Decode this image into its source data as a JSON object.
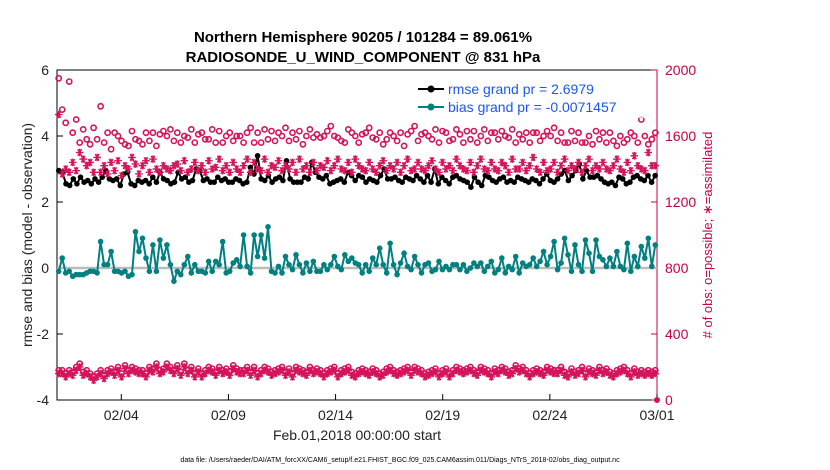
{
  "chart_data": {
    "type": "line",
    "title": {
      "line1": "Northern Hemisphere 90205 / 101284 = 89.061%",
      "line2": "RADIOSONDE_U_WIND_COMPONENT @ 831 hPa"
    },
    "xlabel": "Feb.01,2018 00:00:00 start",
    "ylabel_left": "rmse and bias (model - observation)",
    "ylabel_right": "# of obs: o=possible; ∗=assimilated",
    "xlim": [
      0,
      28
    ],
    "ylim_left": [
      -4,
      6
    ],
    "ylim_right": [
      0,
      2000
    ],
    "x_ticks": [
      {
        "value": 3,
        "label": "02/04"
      },
      {
        "value": 8,
        "label": "02/09"
      },
      {
        "value": 13,
        "label": "02/14"
      },
      {
        "value": 18,
        "label": "02/19"
      },
      {
        "value": 23,
        "label": "02/24"
      },
      {
        "value": 28,
        "label": "03/01"
      }
    ],
    "y_ticks_left": [
      "-4",
      "-2",
      "0",
      "2",
      "4",
      "6"
    ],
    "y_ticks_right": [
      "0",
      "400",
      "800",
      "1200",
      "1600",
      "2000"
    ],
    "legend": [
      {
        "label": "rmse grand pr = 2.6979",
        "color": "#000000"
      },
      {
        "label": "bias grand pr = -0.0071457",
        "color": "#008080"
      }
    ],
    "series": [
      {
        "name": "rmse",
        "color": "#000000",
        "marker": "filled-circle",
        "values": [
          2.95,
          2.9,
          2.55,
          2.5,
          2.7,
          2.55,
          2.75,
          2.6,
          2.65,
          2.55,
          2.7,
          2.6,
          2.75,
          2.95,
          2.7,
          2.65,
          2.7,
          2.5,
          2.85,
          2.9,
          2.55,
          2.5,
          2.65,
          2.6,
          2.65,
          2.55,
          2.75,
          2.6,
          2.9,
          2.7,
          2.65,
          2.55,
          2.6,
          2.9,
          2.7,
          2.75,
          2.6,
          2.65,
          3.0,
          2.95,
          2.65,
          2.7,
          2.6,
          2.6,
          2.75,
          2.65,
          2.7,
          2.6,
          2.6,
          2.7,
          2.65,
          2.55,
          2.6,
          3.05,
          2.85,
          3.4,
          2.7,
          2.65,
          2.8,
          2.6,
          2.7,
          2.75,
          2.65,
          3.25,
          2.7,
          2.6,
          2.6,
          2.6,
          2.75,
          2.7,
          3.2,
          2.9,
          2.75,
          2.7,
          2.8,
          2.55,
          2.6,
          2.65,
          2.7,
          2.6,
          2.9,
          2.8,
          2.65,
          2.8,
          2.75,
          2.6,
          2.7,
          2.65,
          2.6,
          2.8,
          3.0,
          2.7,
          2.7,
          2.75,
          2.65,
          2.6,
          2.75,
          2.7,
          2.65,
          2.8,
          2.7,
          2.6,
          2.8,
          2.6,
          3.0,
          2.55,
          2.75,
          2.65,
          2.55,
          2.75,
          2.8,
          2.7,
          2.65,
          2.6,
          2.45,
          2.75,
          2.6,
          2.5,
          2.8,
          2.75,
          2.65,
          2.6,
          2.7,
          2.75,
          2.6,
          2.65,
          2.6,
          2.75,
          2.7,
          2.65,
          2.6,
          2.7,
          2.65,
          2.55,
          2.7,
          2.85,
          2.65,
          2.6,
          2.7,
          2.85,
          2.95,
          2.65,
          2.8,
          2.95,
          3.15,
          2.7,
          2.95,
          2.75,
          2.75,
          2.8,
          2.7,
          2.6,
          2.55,
          2.6,
          2.5,
          2.75,
          2.7,
          2.55,
          2.6,
          2.75,
          2.8,
          2.7,
          2.65,
          2.8,
          2.6,
          2.8
        ]
      },
      {
        "name": "bias",
        "color": "#008080",
        "marker": "filled-circle",
        "values": [
          -0.1,
          0.3,
          -0.15,
          -0.1,
          -0.25,
          -0.2,
          -0.2,
          -0.2,
          -0.15,
          -0.1,
          -0.1,
          -0.15,
          0.8,
          0.1,
          0.1,
          0.5,
          -0.1,
          -0.1,
          -0.15,
          -0.1,
          -0.25,
          -0.2,
          1.1,
          0.5,
          0.9,
          0.3,
          -0.1,
          0.7,
          -0.1,
          0.85,
          0.3,
          0.7,
          0.1,
          -0.4,
          -0.1,
          -0.2,
          0.1,
          0.35,
          -0.15,
          0.1,
          -0.1,
          -0.1,
          -0.15,
          0.2,
          -0.1,
          0.2,
          0.1,
          0.8,
          -0.15,
          -0.1,
          0.15,
          0.25,
          0.05,
          1.0,
          0.05,
          -0.15,
          1.0,
          0.35,
          1.0,
          0.3,
          1.25,
          -0.1,
          -0.15,
          0.05,
          -0.15,
          0.35,
          0.1,
          -0.05,
          0.4,
          0.1,
          -0.15,
          0.15,
          -0.1,
          0.2,
          -0.1,
          -0.1,
          0.1,
          -0.05,
          0.1,
          0.35,
          0.05,
          -0.05,
          0.4,
          0.2,
          0.3,
          0.15,
          0.1,
          -0.15,
          0.1,
          -0.1,
          0.3,
          0.1,
          0.6,
          0.1,
          -0.15,
          0.75,
          0.1,
          -0.2,
          0.15,
          0.45,
          0.05,
          -0.05,
          0.35,
          0.1,
          -0.15,
          0.1,
          0.15,
          -0.1,
          -0.05,
          0.2,
          -0.05,
          0.05,
          -0.05,
          0.1,
          0.1,
          -0.05,
          0.1,
          -0.1,
          0.0,
          0.15,
          0.05,
          0.15,
          -0.1,
          0.05,
          0.2,
          -0.15,
          -0.05,
          0.3,
          -0.15,
          0.05,
          -0.05,
          0.35,
          -0.15,
          0.15,
          0.05,
          0.1,
          0.3,
          0.05,
          0.2,
          0.5,
          0.1,
          0.35,
          0.8,
          -0.05,
          0.15,
          0.9,
          0.4,
          -0.1,
          0.7,
          0.1,
          -0.1,
          0.85,
          0.45,
          -0.1,
          0.85,
          0.35,
          0.25,
          0.05,
          0.3,
          0.05,
          0.5,
          0.05,
          -0.05,
          0.75,
          -0.1,
          0.35,
          0.05,
          0.65,
          0.3,
          0.9,
          0.05,
          0.7
        ]
      },
      {
        "name": "possible",
        "color": "#d4145a",
        "marker": "open-circle",
        "axis": "right",
        "values": [
          1950,
          1760,
          1680,
          1930,
          1620,
          1700,
          1560,
          1640,
          1580,
          1550,
          1650,
          1580,
          1780,
          1560,
          1620,
          1520,
          1620,
          1600,
          1570,
          1550,
          1540,
          1630,
          1580,
          1570,
          1550,
          1620,
          1570,
          1620,
          1540,
          1610,
          1630,
          1600,
          1640,
          1570,
          1620,
          1560,
          1600,
          1590,
          1640,
          1560,
          1610,
          1620,
          1580,
          1580,
          1640,
          1560,
          1630,
          1560,
          1600,
          1620,
          1570,
          1600,
          1600,
          1560,
          1620,
          1650,
          1560,
          1620,
          1560,
          1640,
          1580,
          1630,
          1570,
          1620,
          1600,
          1650,
          1570,
          1620,
          1580,
          1630,
          1550,
          1600,
          1640,
          1590,
          1610,
          1590,
          1600,
          1630,
          1660,
          1600,
          1590,
          1570,
          1560,
          1640,
          1620,
          1600,
          1560,
          1610,
          1620,
          1650,
          1590,
          1580,
          1620,
          1550,
          1580,
          1620,
          1600,
          1570,
          1620,
          1540,
          1610,
          1630,
          1660,
          1570,
          1610,
          1620,
          1600,
          1580,
          1640,
          1560,
          1630,
          1620,
          1570,
          1580,
          1640,
          1610,
          1560,
          1630,
          1580,
          1630,
          1560,
          1600,
          1640,
          1570,
          1620,
          1620,
          1580,
          1630,
          1600,
          1590,
          1640,
          1560,
          1610,
          1580,
          1620,
          1560,
          1620,
          1620,
          1570,
          1600,
          1630,
          1600,
          1650,
          1570,
          1620,
          1560,
          1560,
          1630,
          1570,
          1620,
          1560,
          1560,
          1600,
          1550,
          1630,
          1580,
          1620,
          1560,
          1620,
          1570,
          1540,
          1600,
          1560,
          1580,
          1620,
          1600,
          1560,
          1700,
          1600,
          1550,
          1580,
          1620
        ]
      },
      {
        "name": "assimilated",
        "color": "#d4145a",
        "marker": "asterisk",
        "axis": "right",
        "values": [
          1730,
          1370,
          1400,
          1380,
          1440,
          1390,
          1500,
          1460,
          1420,
          1440,
          1380,
          1470,
          1380,
          1420,
          1370,
          1440,
          1390,
          1450,
          1360,
          1420,
          1400,
          1470,
          1430,
          1370,
          1420,
          1450,
          1380,
          1460,
          1400,
          1380,
          1420,
          1400,
          1390,
          1420,
          1430,
          1390,
          1450,
          1380,
          1400,
          1440,
          1390,
          1420,
          1380,
          1450,
          1400,
          1410,
          1460,
          1390,
          1420,
          1380,
          1440,
          1400,
          1380,
          1420,
          1460,
          1380,
          1440,
          1400,
          1390,
          1460,
          1380,
          1420,
          1410,
          1450,
          1390,
          1420,
          1400,
          1440,
          1380,
          1460,
          1400,
          1420,
          1380,
          1440,
          1390,
          1420,
          1410,
          1450,
          1390,
          1420,
          1460,
          1400,
          1390,
          1440,
          1380,
          1460,
          1420,
          1400,
          1390,
          1440,
          1400,
          1380,
          1420,
          1450,
          1390,
          1420,
          1400,
          1440,
          1380,
          1420,
          1460,
          1390,
          1400,
          1440,
          1400,
          1390,
          1420,
          1450,
          1400,
          1380,
          1440,
          1400,
          1420,
          1390,
          1460,
          1420,
          1400,
          1390,
          1440,
          1380,
          1420,
          1460,
          1400,
          1390,
          1440,
          1400,
          1390,
          1440,
          1420,
          1380,
          1460,
          1400,
          1400,
          1440,
          1390,
          1420,
          1470,
          1400,
          1380,
          1440,
          1390,
          1400,
          1440,
          1380,
          1420,
          1460,
          1390,
          1420,
          1400,
          1440,
          1380,
          1420,
          1460,
          1390,
          1420,
          1400,
          1440,
          1400,
          1390,
          1420,
          1460,
          1400,
          1380,
          1440,
          1390,
          1480,
          1420,
          1400,
          1390,
          1500,
          1420,
          1420
        ]
      },
      {
        "name": "possible_bottom",
        "color": "#d4145a",
        "marker": "open-circle",
        "axis": "left",
        "values": [
          -3.1,
          -3.1,
          -3.2,
          -3.1,
          -3.15,
          -3.0,
          -2.9,
          -3.15,
          -3.1,
          -3.2,
          -3.3,
          -3.2,
          -3.1,
          -3.25,
          -3.1,
          -3.05,
          -3.15,
          -3.0,
          -3.2,
          -2.95,
          -3.1,
          -3.0,
          -3.05,
          -3.1,
          -3.1,
          -3.2,
          -3.0,
          -3.05,
          -2.9,
          -3.1,
          -3.05,
          -2.9,
          -3.0,
          -3.1,
          -2.95,
          -3.15,
          -2.9,
          -3.1,
          -3.0,
          -3.2,
          -3.05,
          -3.2,
          -3.1,
          -3.0,
          -3.05,
          -3.15,
          -3.0,
          -3.1,
          -3.05,
          -3.15,
          -2.95,
          -3.05,
          -3.1,
          -3.1,
          -3.0,
          -3.15,
          -3.0,
          -3.2,
          -3.1,
          -3.0,
          -3.05,
          -3.15,
          -3.1,
          -3.05,
          -3.0,
          -3.15,
          -3.05,
          -3.2,
          -3.0,
          -3.05,
          -3.1,
          -3.15,
          -3.0,
          -3.1,
          -3.05,
          -3.1,
          -3.2,
          -3.1,
          -3.05,
          -3.0,
          -3.2,
          -3.1,
          -3.05,
          -3.0,
          -3.15,
          -3.2,
          -3.1,
          -3.05,
          -3.1,
          -3.15,
          -3.05,
          -3.1,
          -3.2,
          -3.15,
          -3.05,
          -3.0,
          -3.1,
          -3.15,
          -3.1,
          -3.05,
          -3.0,
          -3.15,
          -3.0,
          -3.05,
          -3.1,
          -3.2,
          -3.15,
          -3.1,
          -3.05,
          -3.2,
          -3.1,
          -3.05,
          -3.2,
          -3.1,
          -3.0,
          -3.05,
          -3.1,
          -3.05,
          -3.0,
          -3.1,
          -3.15,
          -3.0,
          -3.05,
          -3.1,
          -3.2,
          -3.05,
          -3.1,
          -3.0,
          -3.05,
          -3.15,
          -3.1,
          -2.95,
          -3.05,
          -3.0,
          -3.1,
          -3.2,
          -3.1,
          -3.05,
          -3.1,
          -3.15,
          -3.0,
          -3.05,
          -3.1,
          -3.1,
          -3.0,
          -3.15,
          -3.2,
          -3.05,
          -3.15,
          -3.1,
          -3.0,
          -3.2,
          -3.05,
          -3.1,
          -3.15,
          -3.0,
          -3.1,
          -3.05,
          -3.15,
          -3.2,
          -3.1,
          -3.05,
          -3.0,
          -3.1,
          -3.2,
          -3.05,
          -3.15,
          -3.1,
          -3.15,
          -3.1,
          -3.15,
          -3.1
        ]
      },
      {
        "name": "assimilated_bottom",
        "color": "#d4145a",
        "marker": "asterisk",
        "axis": "left",
        "values": [
          -3.2,
          -3.2,
          -3.3,
          -3.2,
          -3.25,
          -3.1,
          -3.0,
          -3.25,
          -3.2,
          -3.3,
          -3.4,
          -3.3,
          -3.2,
          -3.35,
          -3.2,
          -3.15,
          -3.25,
          -3.1,
          -3.3,
          -3.05,
          -3.2,
          -3.1,
          -3.15,
          -3.2,
          -3.2,
          -3.3,
          -3.1,
          -3.15,
          -3.0,
          -3.2,
          -3.15,
          -3.0,
          -3.1,
          -3.2,
          -3.05,
          -3.25,
          -3.0,
          -3.2,
          -3.1,
          -3.3,
          -3.15,
          -3.3,
          -3.2,
          -3.1,
          -3.15,
          -3.25,
          -3.1,
          -3.2,
          -3.15,
          -3.25,
          -3.05,
          -3.15,
          -3.2,
          -3.2,
          -3.1,
          -3.25,
          -3.1,
          -3.3,
          -3.2,
          -3.1,
          -3.15,
          -3.25,
          -3.2,
          -3.15,
          -3.1,
          -3.25,
          -3.15,
          -3.3,
          -3.1,
          -3.15,
          -3.2,
          -3.25,
          -3.1,
          -3.2,
          -3.15,
          -3.2,
          -3.3,
          -3.2,
          -3.15,
          -3.1,
          -3.3,
          -3.2,
          -3.15,
          -3.1,
          -3.25,
          -3.3,
          -3.2,
          -3.15,
          -3.2,
          -3.25,
          -3.15,
          -3.2,
          -3.3,
          -3.25,
          -3.15,
          -3.1,
          -3.2,
          -3.25,
          -3.2,
          -3.15,
          -3.1,
          -3.25,
          -3.1,
          -3.15,
          -3.2,
          -3.3,
          -3.25,
          -3.2,
          -3.15,
          -3.3,
          -3.2,
          -3.15,
          -3.3,
          -3.2,
          -3.1,
          -3.15,
          -3.2,
          -3.15,
          -3.1,
          -3.2,
          -3.25,
          -3.1,
          -3.15,
          -3.2,
          -3.3,
          -3.15,
          -3.2,
          -3.1,
          -3.15,
          -3.25,
          -3.2,
          -3.05,
          -3.15,
          -3.1,
          -3.2,
          -3.3,
          -3.2,
          -3.15,
          -3.2,
          -3.25,
          -3.1,
          -3.15,
          -3.2,
          -3.2,
          -3.1,
          -3.25,
          -3.3,
          -3.15,
          -3.25,
          -3.2,
          -3.1,
          -3.3,
          -3.15,
          -3.2,
          -3.25,
          -3.1,
          -3.2,
          -3.15,
          -3.25,
          -3.3,
          -3.2,
          -3.15,
          -3.1,
          -3.2,
          -3.3,
          -3.15,
          -3.25,
          -3.2,
          -3.25,
          -3.2,
          -3.25,
          -3.2
        ]
      }
    ],
    "footer": "data file: /Users/raeder/DAI/ATM_forcXX/CAM6_setup/f.e21.FHIST_BGC.f09_025.CAM6assim.011/Diags_NTrS_2018-02/obs_diag_output.nc"
  }
}
